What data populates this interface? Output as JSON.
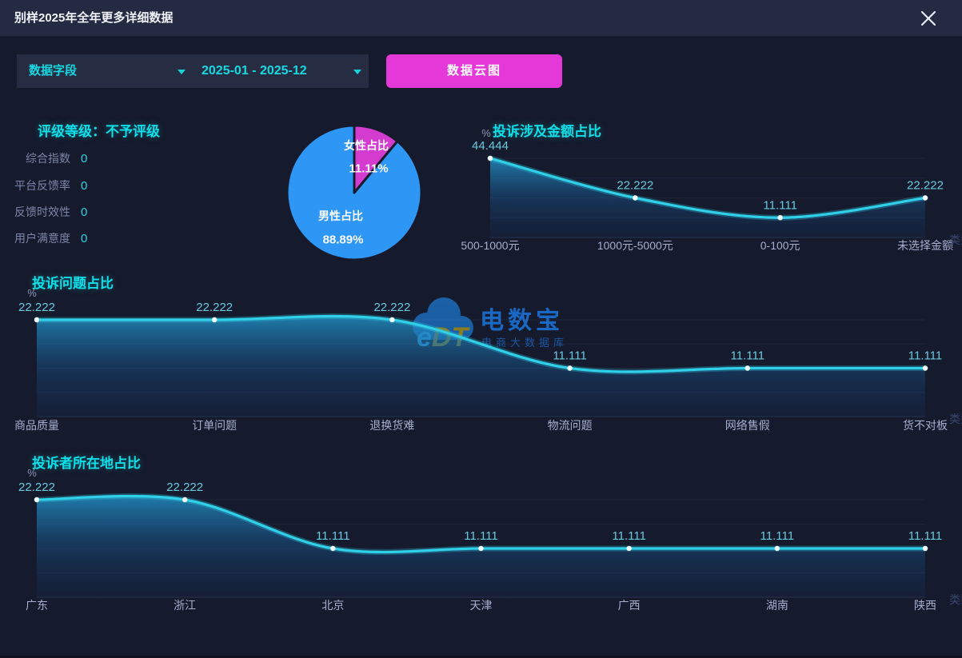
{
  "header": {
    "title": "别样2025年全年更多详细数据"
  },
  "controls": {
    "field_select": "数据字段",
    "date_range": "2025-01 - 2025-12",
    "cloud_button": "数据云图"
  },
  "rating": {
    "title": "评级等级：不予评级",
    "metrics": [
      {
        "label": "综合指数",
        "value": "0"
      },
      {
        "label": "平台反馈率",
        "value": "0"
      },
      {
        "label": "反馈时效性",
        "value": "0"
      },
      {
        "label": "用户满意度",
        "value": "0"
      }
    ]
  },
  "watermark": {
    "logo_e": "e",
    "logo_dt": "DT",
    "brand": "电数宝",
    "subtitle": "电商大数据库"
  },
  "chart_data": [
    {
      "id": "gender-pie",
      "type": "pie",
      "slices": [
        {
          "label": "女性占比",
          "value": 11.11,
          "display": "11.11%",
          "color": "#d43bcf"
        },
        {
          "label": "男性占比",
          "value": 88.89,
          "display": "88.89%",
          "color": "#2e96f5"
        }
      ]
    },
    {
      "id": "amount",
      "type": "line",
      "title": "投诉涉及金额占比",
      "ylabel": "%",
      "xlabel": "类型",
      "categories": [
        "500-1000元",
        "1000元-5000元",
        "0-100元",
        "未选择金额"
      ],
      "values": [
        44.444,
        22.222,
        11.111,
        22.222
      ],
      "value_labels": [
        "44.444",
        "22.222",
        "11.111",
        "22.222"
      ],
      "ylim": [
        0,
        44.444
      ],
      "grid": true,
      "smooth": true,
      "area": true,
      "legend_position": "none"
    },
    {
      "id": "problem",
      "type": "line",
      "title": "投诉问题占比",
      "ylabel": "%",
      "xlabel": "类型",
      "categories": [
        "商品质量",
        "订单问题",
        "退换货难",
        "物流问题",
        "网络售假",
        "货不对板"
      ],
      "values": [
        22.222,
        22.222,
        22.222,
        11.111,
        11.111,
        11.111
      ],
      "value_labels": [
        "22.222",
        "22.222",
        "22.222",
        "11.111",
        "11.111",
        "11.111"
      ],
      "ylim": [
        0,
        22.222
      ],
      "grid": true,
      "smooth": true,
      "area": true,
      "legend_position": "none"
    },
    {
      "id": "location",
      "type": "line",
      "title": "投诉者所在地占比",
      "ylabel": "%",
      "xlabel": "类型",
      "categories": [
        "广东",
        "浙江",
        "北京",
        "天津",
        "广西",
        "湖南",
        "陕西"
      ],
      "values": [
        22.222,
        22.222,
        11.111,
        11.111,
        11.111,
        11.111,
        11.111
      ],
      "value_labels": [
        "22.222",
        "22.222",
        "11.111",
        "11.111",
        "11.111",
        "11.111",
        "11.111"
      ],
      "ylim": [
        0,
        22.222
      ],
      "grid": true,
      "smooth": true,
      "area": true,
      "legend_position": "none"
    }
  ],
  "colors": {
    "background": "#151a2c",
    "header_bar": "#232a41",
    "accent_cyan": "#0edfe9",
    "line": "#2fd0e8",
    "value_label": "#68cade",
    "category_label": "#a6aecd",
    "axis_name": "#39456b",
    "magenta_button": "#e438d8",
    "pie_female": "#d43bcf",
    "pie_male": "#2e96f5"
  }
}
